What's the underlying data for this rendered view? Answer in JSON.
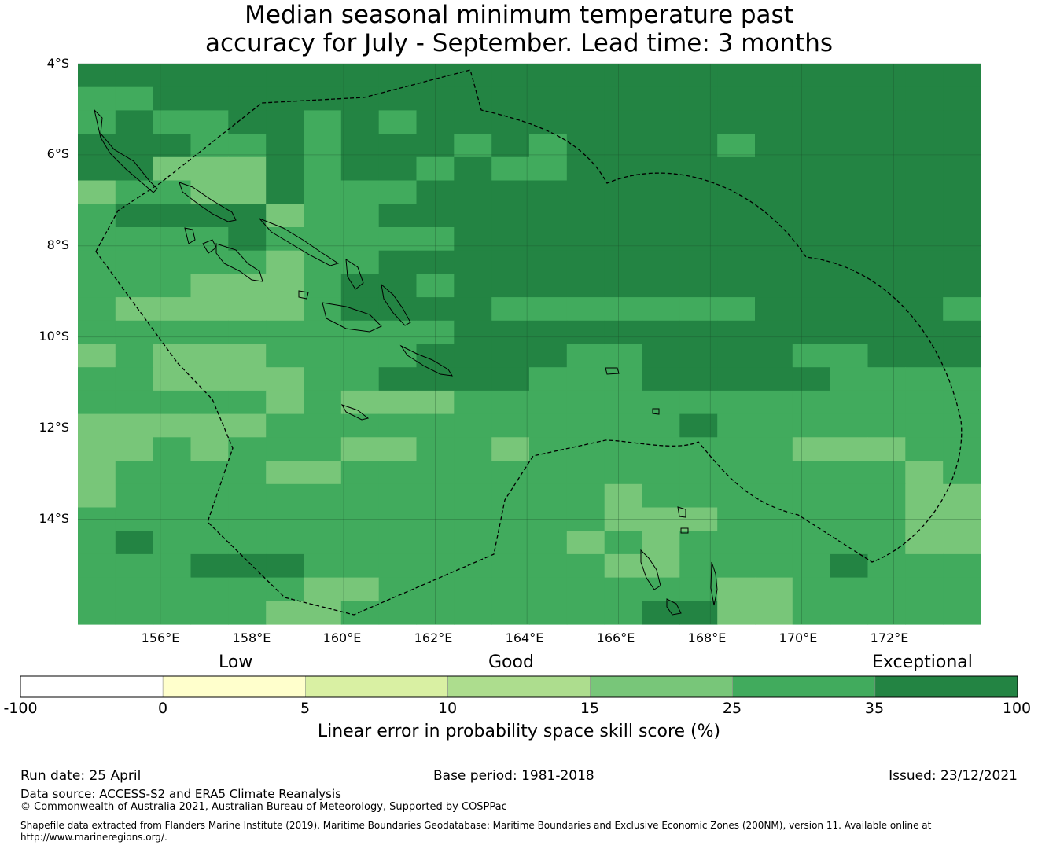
{
  "title_line1": "Median seasonal minimum temperature past",
  "title_line2": "accuracy for July - September. Lead time: 3 months",
  "map": {
    "lat_labels": [
      "4°S",
      "6°S",
      "8°S",
      "10°S",
      "12°S",
      "14°S"
    ],
    "lon_labels": [
      "156°E",
      "158°E",
      "160°E",
      "162°E",
      "164°E",
      "166°E",
      "168°E",
      "170°E",
      "172°E"
    ],
    "lon_range": [
      154.2,
      173.9
    ],
    "lat_range": [
      -4.0,
      -16.3
    ],
    "grid_lons": [
      156,
      158,
      160,
      162,
      164,
      166,
      168,
      170,
      172
    ],
    "grid_lats": [
      -4,
      -6,
      -8,
      -10,
      -12,
      -14
    ],
    "cell_colors": {
      "1": "#78c679",
      "2": "#41ab5d",
      "3": "#238443"
    },
    "eez_boundary_color": "#000000",
    "coastline_color": "#000000"
  },
  "colorbar": {
    "category_labels": [
      "Low",
      "Good",
      "Exceptional"
    ],
    "ticks": [
      "-100",
      "0",
      "5",
      "10",
      "15",
      "25",
      "35",
      "100"
    ],
    "colors": [
      "#ffffff",
      "#ffffcc",
      "#d9f0a3",
      "#addd8e",
      "#78c679",
      "#41ab5d",
      "#238443"
    ],
    "label": "Linear error in probability space skill score (%)"
  },
  "footer": {
    "run_date": "Run date: 25 April",
    "base_period": "Base period: 1981-2018",
    "issued": "Issued: 23/12/2021",
    "data_source": "Data source: ACCESS-S2 and ERA5 Climate Reanalysis",
    "copyright": "© Commonwealth of Australia 2021, Australian Bureau of Meteorology, Supported by COSPPac",
    "shapefile_note": "Shapefile data extracted from Flanders Marine Institute (2019), Maritime Boundaries Geodatabase: Maritime Boundaries and Exclusive Economic Zones (200NM), version 11. Available online at http://www.marineregions.org/."
  }
}
